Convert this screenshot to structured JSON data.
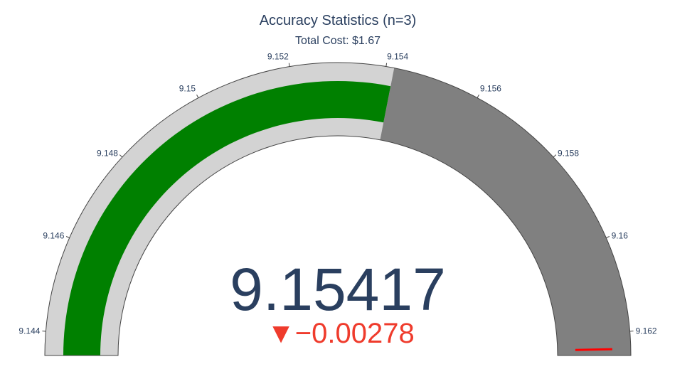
{
  "chart_data": {
    "type": "gauge",
    "title": "Accuracy Statistics (n=3)",
    "subtitle": "Total Cost: $1.67",
    "value": 9.15417,
    "value_text": "9.15417",
    "delta": {
      "value": -0.00278,
      "text": "▼−0.00278",
      "color": "#ef3b2c"
    },
    "axis": {
      "range": [
        9.1435,
        9.1625
      ],
      "ticks": [
        9.144,
        9.146,
        9.148,
        9.15,
        9.152,
        9.154,
        9.156,
        9.158,
        9.16,
        9.162
      ],
      "tick_labels": [
        "9.144",
        "9.146",
        "9.148",
        "9.15",
        "9.152",
        "9.154",
        "9.156",
        "9.158",
        "9.16",
        "9.162"
      ]
    },
    "bar": {
      "value": 9.15417,
      "color": "#008000"
    },
    "steps": [
      {
        "range": [
          9.1435,
          9.15417
        ],
        "color": "#d3d3d3"
      },
      {
        "range": [
          9.15417,
          9.1625
        ],
        "color": "#808080"
      }
    ],
    "threshold": {
      "value": 9.16236,
      "color": "#ff0000"
    }
  }
}
